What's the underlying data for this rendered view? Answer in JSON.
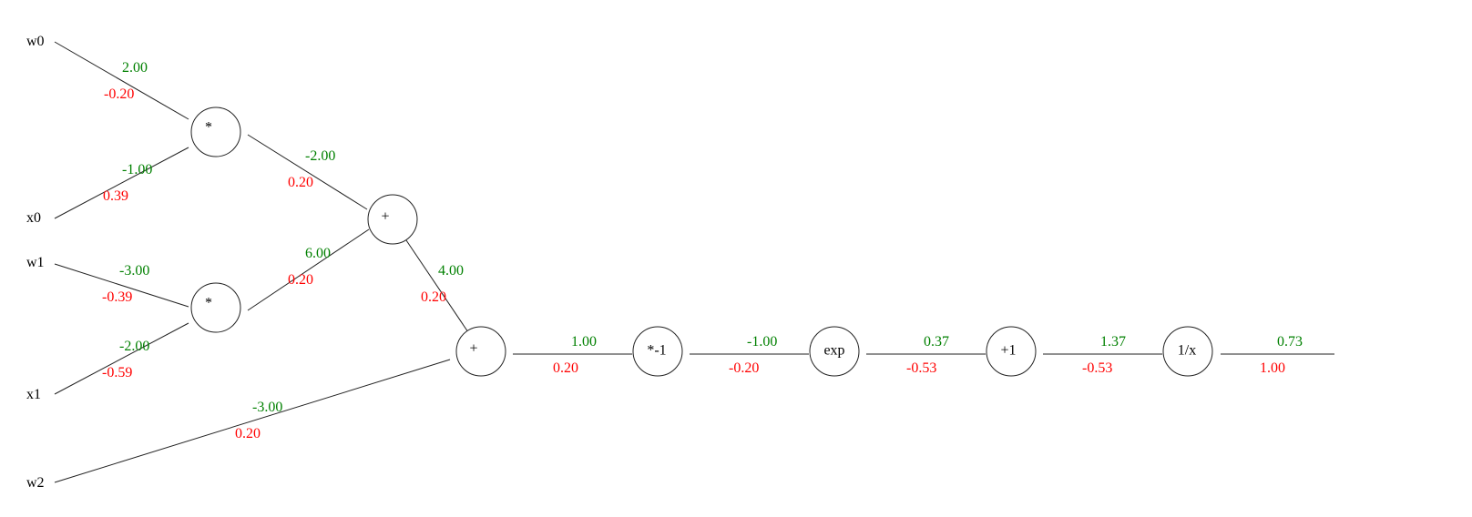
{
  "colors": {
    "forward": "#008000",
    "backward": "#ff0000",
    "stroke": "#222222"
  },
  "inputs": [
    {
      "id": "w0",
      "label": "w0"
    },
    {
      "id": "x0",
      "label": "x0"
    },
    {
      "id": "w1",
      "label": "w1"
    },
    {
      "id": "x1",
      "label": "x1"
    },
    {
      "id": "w2",
      "label": "w2"
    }
  ],
  "nodes": [
    {
      "id": "mul0",
      "label": "*"
    },
    {
      "id": "mul1",
      "label": "*"
    },
    {
      "id": "add0",
      "label": "+"
    },
    {
      "id": "add1",
      "label": "+"
    },
    {
      "id": "neg",
      "label": "*-1"
    },
    {
      "id": "exp",
      "label": "exp"
    },
    {
      "id": "plus1",
      "label": "+1"
    },
    {
      "id": "inv",
      "label": "1/x"
    }
  ],
  "edges": [
    {
      "id": "w0-mul0",
      "from": "w0",
      "to": "mul0",
      "forward": "2.00",
      "backward": "-0.20"
    },
    {
      "id": "x0-mul0",
      "from": "x0",
      "to": "mul0",
      "forward": "-1.00",
      "backward": "0.39"
    },
    {
      "id": "w1-mul1",
      "from": "w1",
      "to": "mul1",
      "forward": "-3.00",
      "backward": "-0.39"
    },
    {
      "id": "x1-mul1",
      "from": "x1",
      "to": "mul1",
      "forward": "-2.00",
      "backward": "-0.59"
    },
    {
      "id": "mul0-add0",
      "from": "mul0",
      "to": "add0",
      "forward": "-2.00",
      "backward": "0.20"
    },
    {
      "id": "mul1-add0",
      "from": "mul1",
      "to": "add0",
      "forward": "6.00",
      "backward": "0.20"
    },
    {
      "id": "add0-add1",
      "from": "add0",
      "to": "add1",
      "forward": "4.00",
      "backward": "0.20"
    },
    {
      "id": "w2-add1",
      "from": "w2",
      "to": "add1",
      "forward": "-3.00",
      "backward": "0.20"
    },
    {
      "id": "add1-neg",
      "from": "add1",
      "to": "neg",
      "forward": "1.00",
      "backward": "0.20"
    },
    {
      "id": "neg-exp",
      "from": "neg",
      "to": "exp",
      "forward": "-1.00",
      "backward": "-0.20"
    },
    {
      "id": "exp-plus1",
      "from": "exp",
      "to": "plus1",
      "forward": "0.37",
      "backward": "-0.53"
    },
    {
      "id": "plus1-inv",
      "from": "plus1",
      "to": "inv",
      "forward": "1.37",
      "backward": "-0.53"
    },
    {
      "id": "inv-out",
      "from": "inv",
      "to": "output",
      "forward": "0.73",
      "backward": "1.00"
    }
  ]
}
